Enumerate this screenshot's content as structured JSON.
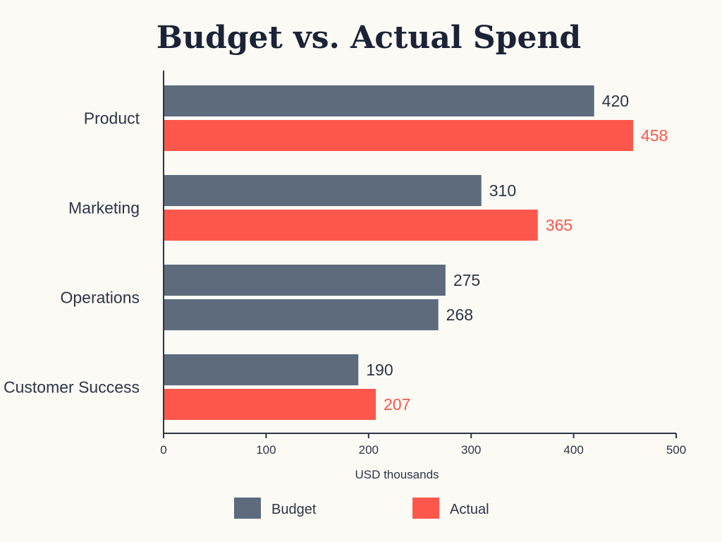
{
  "chart_data": {
    "type": "bar",
    "orientation": "horizontal",
    "title": "Budget vs. Actual Spend",
    "xlabel": "USD thousands",
    "ylabel": "",
    "xlim": [
      0,
      500
    ],
    "xticks": [
      0,
      100,
      200,
      300,
      400,
      500
    ],
    "grid": false,
    "legend_position": "bottom",
    "categories": [
      "Product",
      "Marketing",
      "Operations",
      "Customer Success"
    ],
    "series": [
      {
        "name": "Budget",
        "color": "#5d6b7d",
        "values": [
          420,
          310,
          275,
          190
        ]
      },
      {
        "name": "Actual",
        "color": "#fc574a",
        "values": [
          458,
          365,
          268,
          207
        ]
      }
    ],
    "bar_colors": {
      "Actual": [
        "#fc574a",
        "#fc574a",
        "#5d6b7d",
        "#fc574a"
      ]
    },
    "value_label_colors": {
      "Budget": [
        "#2c3446",
        "#2c3446",
        "#2c3446",
        "#2c3446"
      ],
      "Actual": [
        "#fc574a",
        "#fc574a",
        "#2c3446",
        "#fc574a"
      ]
    }
  }
}
